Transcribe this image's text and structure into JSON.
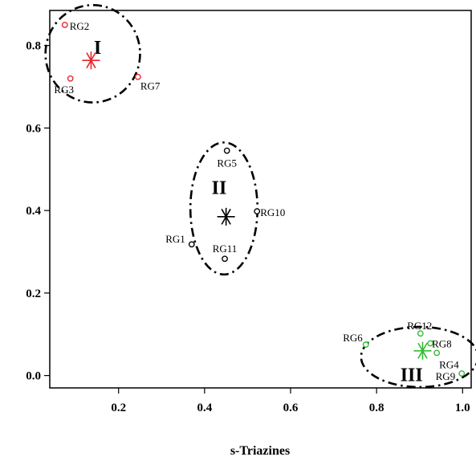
{
  "chart_data": {
    "type": "scatter",
    "title": "",
    "xlabel": "s-Triazines",
    "ylabel": "",
    "xlim": [
      0.04,
      1.02
    ],
    "ylim": [
      -0.03,
      0.885
    ],
    "xticks": [
      0.2,
      0.4,
      0.6,
      0.8,
      1.0
    ],
    "xtick_labels": [
      "0.2",
      "0.4",
      "0.6",
      "0.8",
      "1.0"
    ],
    "yticks": [
      0.0,
      0.2,
      0.4,
      0.6,
      0.8
    ],
    "ytick_labels": [
      "0.0",
      "0.2",
      "0.4",
      "0.6",
      "0.8"
    ],
    "grid": false,
    "points": [
      {
        "label": "RG2",
        "x": 0.075,
        "y": 0.85,
        "color": "#e8262a"
      },
      {
        "label": "RG3",
        "x": 0.088,
        "y": 0.72,
        "color": "#e8262a"
      },
      {
        "label": "RG7",
        "x": 0.245,
        "y": 0.724,
        "color": "#e8262a"
      },
      {
        "label": "RG5",
        "x": 0.452,
        "y": 0.545,
        "color": "#000000"
      },
      {
        "label": "RG10",
        "x": 0.522,
        "y": 0.398,
        "color": "#000000"
      },
      {
        "label": "RG1",
        "x": 0.37,
        "y": 0.318,
        "color": "#000000"
      },
      {
        "label": "RG11",
        "x": 0.447,
        "y": 0.283,
        "color": "#000000"
      },
      {
        "label": "RG6",
        "x": 0.775,
        "y": 0.075,
        "color": "#33bb33"
      },
      {
        "label": "RG12",
        "x": 0.902,
        "y": 0.102,
        "color": "#33bb33"
      },
      {
        "label": "RG8",
        "x": 0.925,
        "y": 0.078,
        "color": "#33bb33"
      },
      {
        "label": "RG4",
        "x": 0.94,
        "y": 0.055,
        "color": "#33bb33"
      },
      {
        "label": "RG9",
        "x": 0.998,
        "y": 0.005,
        "color": "#33bb33"
      }
    ],
    "centroids": [
      {
        "x": 0.136,
        "y": 0.764,
        "color": "#e8262a"
      },
      {
        "x": 0.45,
        "y": 0.385,
        "color": "#000000"
      },
      {
        "x": 0.907,
        "y": 0.06,
        "color": "#33bb33"
      }
    ],
    "clusters": [
      {
        "label": "I",
        "cx": 0.14,
        "cy": 0.78,
        "rx": 0.11,
        "ry": 0.118
      },
      {
        "label": "II",
        "cx": 0.445,
        "cy": 0.405,
        "rx": 0.078,
        "ry": 0.16
      },
      {
        "label": "III",
        "cx": 0.9,
        "cy": 0.045,
        "rx": 0.136,
        "ry": 0.073
      }
    ]
  }
}
